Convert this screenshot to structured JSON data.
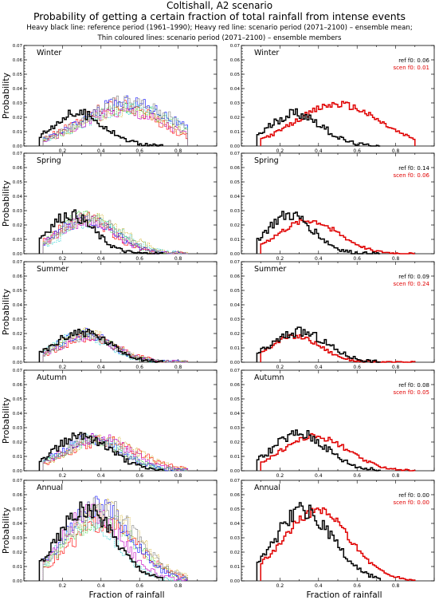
{
  "header": {
    "line1": "Coltishall, A2 scenario",
    "line2": "Probability of getting a certain fraction of total rainfall from intense events",
    "line3": "Heavy black line: reference period (1961–1990); Heavy red line: scenario period (2071–2100) – ensemble mean;",
    "line4": "Thin coloured lines: scenario period (2071–2100) – ensemble members"
  },
  "axes_text": {
    "ylabel": "Probability",
    "xlabel": "Fraction of rainfall",
    "yticks": [
      "0.00",
      "0.01",
      "0.02",
      "0.03",
      "0.04",
      "0.05",
      "0.06",
      "0.07"
    ],
    "xticks": [
      "0.2",
      "0.4",
      "0.6",
      "0.8"
    ]
  },
  "colors": {
    "reference": "#000000",
    "scenario_mean": "#e00000",
    "members": [
      "#ff0000",
      "#00c000",
      "#0000ff",
      "#00c8c8",
      "#c000c0",
      "#c8a000",
      "#808080"
    ]
  },
  "chart_data": [
    {
      "type": "line",
      "season": "Winter",
      "column": "members",
      "xlim": [
        0,
        1
      ],
      "ylim": [
        0,
        0.07
      ],
      "ref": {
        "peak_x": 0.28,
        "peak_y": 0.023
      },
      "scen": {
        "peak_x": 0.52,
        "peak_y": 0.028
      }
    },
    {
      "type": "line",
      "season": "Winter",
      "column": "mean",
      "xlim": [
        0,
        1
      ],
      "ylim": [
        0,
        0.07
      ],
      "ref_f0": "ref  f0: 0.06",
      "scen_f0": "scen f0: 0.01",
      "ref": {
        "peak_x": 0.28,
        "peak_y": 0.023
      },
      "scen": {
        "peak_x": 0.5,
        "peak_y": 0.029
      }
    },
    {
      "type": "line",
      "season": "Spring",
      "column": "members",
      "xlim": [
        0,
        1
      ],
      "ylim": [
        0,
        0.07
      ],
      "ref": {
        "peak_x": 0.24,
        "peak_y": 0.027
      },
      "scen": {
        "peak_x": 0.35,
        "peak_y": 0.025
      }
    },
    {
      "type": "line",
      "season": "Spring",
      "column": "mean",
      "xlim": [
        0,
        1
      ],
      "ylim": [
        0,
        0.07
      ],
      "ref_f0": "ref  f0: 0.14",
      "scen_f0": "scen f0: 0.06",
      "ref": {
        "peak_x": 0.25,
        "peak_y": 0.027
      },
      "scen": {
        "peak_x": 0.35,
        "peak_y": 0.023
      }
    },
    {
      "type": "line",
      "season": "Summer",
      "column": "members",
      "xlim": [
        0,
        1
      ],
      "ylim": [
        0,
        0.07
      ],
      "ref": {
        "peak_x": 0.3,
        "peak_y": 0.021
      },
      "scen": {
        "peak_x": 0.3,
        "peak_y": 0.018
      }
    },
    {
      "type": "line",
      "season": "Summer",
      "column": "mean",
      "xlim": [
        0,
        1
      ],
      "ylim": [
        0,
        0.07
      ],
      "ref_f0": "ref  f0: 0.09",
      "scen_f0": "scen f0: 0.24",
      "ref": {
        "peak_x": 0.3,
        "peak_y": 0.021
      },
      "scen": {
        "peak_x": 0.28,
        "peak_y": 0.018
      }
    },
    {
      "type": "line",
      "season": "Autumn",
      "column": "members",
      "xlim": [
        0,
        1
      ],
      "ylim": [
        0,
        0.07
      ],
      "ref": {
        "peak_x": 0.3,
        "peak_y": 0.025
      },
      "scen": {
        "peak_x": 0.38,
        "peak_y": 0.023
      }
    },
    {
      "type": "line",
      "season": "Autumn",
      "column": "mean",
      "xlim": [
        0,
        1
      ],
      "ylim": [
        0,
        0.07
      ],
      "ref_f0": "ref  f0: 0.08",
      "scen_f0": "scen f0: 0.05",
      "ref": {
        "peak_x": 0.3,
        "peak_y": 0.026
      },
      "scen": {
        "peak_x": 0.38,
        "peak_y": 0.024
      }
    },
    {
      "type": "line",
      "season": "Annual",
      "column": "members",
      "xlim": [
        0,
        1
      ],
      "ylim": [
        0,
        0.07
      ],
      "ref": {
        "peak_x": 0.32,
        "peak_y": 0.049
      },
      "scen": {
        "peak_x": 0.38,
        "peak_y": 0.046
      }
    },
    {
      "type": "line",
      "season": "Annual",
      "column": "mean",
      "xlim": [
        0,
        1
      ],
      "ylim": [
        0,
        0.07
      ],
      "ref_f0": "ref  f0: 0.00",
      "scen_f0": "scen f0: 0.00",
      "ref": {
        "peak_x": 0.32,
        "peak_y": 0.049
      },
      "scen": {
        "peak_x": 0.39,
        "peak_y": 0.049
      }
    }
  ]
}
